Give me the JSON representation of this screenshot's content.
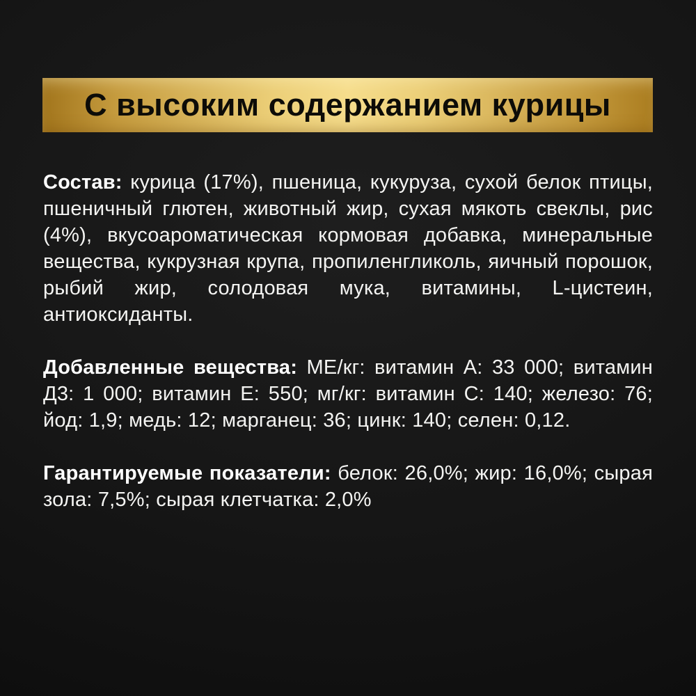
{
  "banner": {
    "title": "С высоким содержанием курицы",
    "gold_dark": "#ab7d20",
    "gold_light": "#f6dd8c",
    "title_color": "#0d0c08"
  },
  "sections": [
    {
      "label": "Состав:",
      "text": "курица (17%), пшеница, кукуруза, сухой белок птицы, пшеничный глютен, животный жир, сухая мякоть свеклы, рис (4%), вкусоароматическая кормовая добавка, минеральные вещества, кукрузная крупа, пропиленгликоль, яичный порошок, рыбий жир, солодовая мука, витамины, L-цистеин, антиоксиданты."
    },
    {
      "label": "Добавленные вещества:",
      "text": "МЕ/кг: витамин А: 33 000; витамин Д3: 1 000; витамин Е: 550; мг/кг: витамин С: 140; железо: 76; йод: 1,9; медь: 12; марганец: 36; цинк: 140; селен: 0,12."
    },
    {
      "label": "Гарантируемые показатели:",
      "text": "белок: 26,0%; жир: 16,0%; сырая зола: 7,5%; сырая клетчатка: 2,0%"
    }
  ],
  "colors": {
    "background": "#0a0a0a",
    "body_text": "#f4f4f2"
  }
}
